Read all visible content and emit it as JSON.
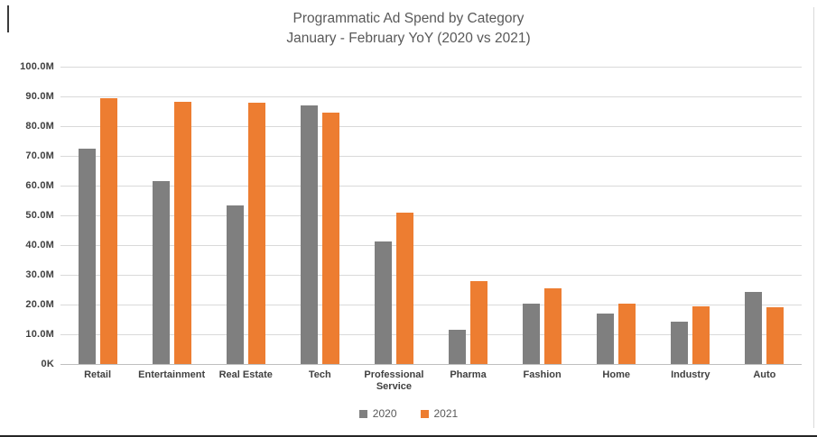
{
  "title": {
    "line1": "Programmatic Ad Spend by Category",
    "line2": "January - February YoY (2020 vs 2021)"
  },
  "chart_data": {
    "type": "bar",
    "title": "Programmatic Ad Spend by Category — January - February YoY (2020 vs 2021)",
    "categories": [
      "Retail",
      "Entertainment",
      "Real Estate",
      "Tech",
      "Professional Service",
      "Pharma",
      "Fashion",
      "Home",
      "Industry",
      "Auto"
    ],
    "series": [
      {
        "name": "2020",
        "color": "#7F7F7F",
        "values": [
          72.4,
          61.4,
          53.3,
          87.1,
          41.3,
          11.5,
          20.2,
          17.0,
          14.3,
          24.4
        ]
      },
      {
        "name": "2021",
        "color": "#ED7D31",
        "values": [
          89.5,
          88.3,
          87.9,
          84.6,
          50.8,
          27.8,
          25.4,
          20.3,
          19.5,
          19.2
        ]
      }
    ],
    "unit": "M",
    "ylabel": "",
    "xlabel": "",
    "ylim": [
      0,
      100
    ],
    "ytick_step": 10,
    "ytick_labels_top_to_bottom": [
      "100.0M",
      "90.0M",
      "80.0M",
      "70.0M",
      "60.0M",
      "50.0M",
      "40.0M",
      "30.0M",
      "20.0M",
      "10.0M",
      "0K"
    ],
    "grid": true,
    "legend_position": "bottom"
  },
  "colors": {
    "bar_2020": "#7F7F7F",
    "bar_2021": "#ED7D31",
    "gridline": "#D9D9D9",
    "axis_text": "#404040",
    "title_text": "#595959",
    "background": "#FFFFFF"
  }
}
